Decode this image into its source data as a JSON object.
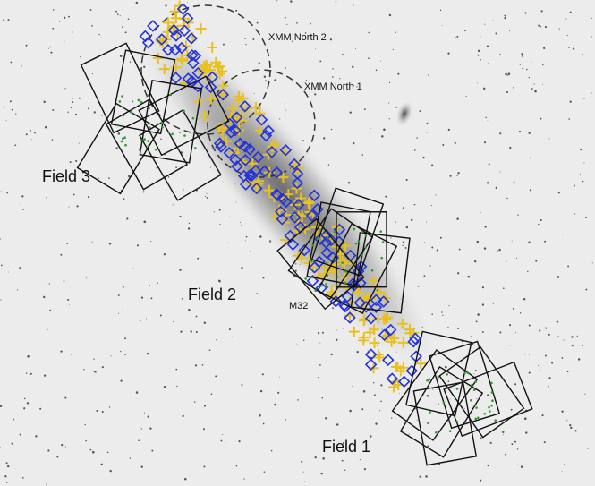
{
  "labels": [
    "XMM North 2",
    "XMM North 1",
    "Field 3",
    "Field 2",
    "M32",
    "Field 1"
  ]
}
